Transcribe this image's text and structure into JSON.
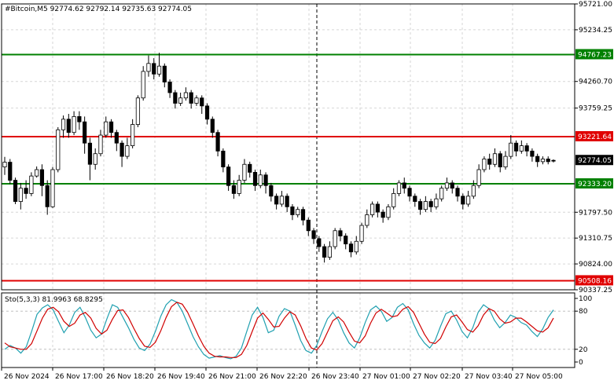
{
  "chart_data": {
    "type": "candlestick",
    "symbol_header": "#Bitcoin,M5  92774.62 92792.14 92735.63 92774.05",
    "y_axis": {
      "ylim": [
        90337.25,
        95721.0
      ],
      "ticks": [
        "95721.00",
        "95234.25",
        "94260.70",
        "93759.25",
        "91797.50",
        "91310.75",
        "90824.00",
        "90337.25"
      ]
    },
    "x_axis": {
      "tick_labels": [
        "26 Nov 2024",
        "26 Nov 17:00",
        "26 Nov 18:20",
        "26 Nov 19:40",
        "26 Nov 21:00",
        "26 Nov 22:20",
        "26 Nov 23:40",
        "27 Nov 01:00",
        "27 Nov 02:20",
        "27 Nov 03:40",
        "27 Nov 05:00"
      ]
    },
    "levels": [
      {
        "value": 94767.23,
        "label": "94767.23",
        "color": "#008000"
      },
      {
        "value": 93221.64,
        "label": "93221.64",
        "color": "#e00000"
      },
      {
        "value": 92333.2,
        "label": "92333.20",
        "color": "#008000"
      },
      {
        "value": 90508.16,
        "label": "90508.16",
        "color": "#e00000"
      }
    ],
    "current_price": {
      "value": 92774.05,
      "label": "92774.05"
    },
    "candles": [
      [
        92650,
        92740,
        92500,
        92840
      ],
      [
        92740,
        92400,
        92330,
        92800
      ],
      [
        92400,
        92000,
        91950,
        92450
      ],
      [
        92000,
        92250,
        91850,
        92350
      ],
      [
        92250,
        92150,
        92050,
        92400
      ],
      [
        92150,
        92480,
        92100,
        92550
      ],
      [
        92480,
        92600,
        92450,
        92660
      ],
      [
        92600,
        92300,
        92100,
        92700
      ],
      [
        92300,
        91900,
        91750,
        92400
      ],
      [
        91900,
        92600,
        91880,
        92650
      ],
      [
        92600,
        93350,
        92550,
        93400
      ],
      [
        93350,
        93550,
        93200,
        93620
      ],
      [
        93550,
        93300,
        93200,
        93650
      ],
      [
        93300,
        93600,
        93250,
        93700
      ],
      [
        93600,
        93500,
        93350,
        93700
      ],
      [
        93500,
        93100,
        92900,
        93600
      ],
      [
        93100,
        92700,
        92400,
        93200
      ],
      [
        92700,
        92900,
        92600,
        93000
      ],
      [
        92900,
        93250,
        92850,
        93350
      ],
      [
        93250,
        93500,
        93200,
        93600
      ],
      [
        93500,
        93300,
        93200,
        93550
      ],
      [
        93300,
        93100,
        92950,
        93350
      ],
      [
        93100,
        92850,
        92650,
        93150
      ],
      [
        92850,
        93050,
        92800,
        93200
      ],
      [
        93050,
        93450,
        93000,
        93550
      ],
      [
        93450,
        93950,
        93400,
        94000
      ],
      [
        93950,
        94450,
        93900,
        94550
      ],
      [
        94450,
        94600,
        94350,
        94750
      ],
      [
        94600,
        94400,
        94300,
        94700
      ],
      [
        94400,
        94550,
        94350,
        94800
      ],
      [
        94550,
        94250,
        94150,
        94600
      ],
      [
        94250,
        94050,
        93950,
        94300
      ],
      [
        94050,
        93850,
        93750,
        94100
      ],
      [
        93850,
        93950,
        93800,
        94050
      ],
      [
        93950,
        94050,
        93900,
        94150
      ],
      [
        94050,
        93850,
        93750,
        94100
      ],
      [
        93850,
        93950,
        93800,
        94000
      ],
      [
        93950,
        93800,
        93650,
        94000
      ],
      [
        93800,
        93550,
        93450,
        93850
      ],
      [
        93550,
        93300,
        93200,
        93600
      ],
      [
        93300,
        92950,
        92850,
        93350
      ],
      [
        92950,
        92650,
        92550,
        93000
      ],
      [
        92650,
        92300,
        92200,
        92700
      ],
      [
        92300,
        92150,
        92050,
        92400
      ],
      [
        92150,
        92400,
        92100,
        92500
      ],
      [
        92400,
        92700,
        92350,
        92800
      ],
      [
        92700,
        92550,
        92450,
        92750
      ],
      [
        92550,
        92300,
        92200,
        92600
      ],
      [
        92300,
        92500,
        92250,
        92600
      ],
      [
        92500,
        92300,
        92150,
        92550
      ],
      [
        92300,
        92100,
        92000,
        92350
      ],
      [
        92100,
        91950,
        91850,
        92150
      ],
      [
        91950,
        92100,
        91900,
        92200
      ],
      [
        92100,
        91900,
        91800,
        92150
      ],
      [
        91900,
        91750,
        91650,
        91950
      ],
      [
        91750,
        91850,
        91700,
        91900
      ],
      [
        91850,
        91650,
        91550,
        91900
      ],
      [
        91650,
        91450,
        91350,
        91700
      ],
      [
        91450,
        91300,
        91200,
        91500
      ],
      [
        91300,
        91150,
        91050,
        91350
      ],
      [
        91150,
        90950,
        90850,
        91200
      ],
      [
        90950,
        91150,
        90900,
        91250
      ],
      [
        91150,
        91450,
        91100,
        91500
      ],
      [
        91450,
        91350,
        91250,
        91500
      ],
      [
        91350,
        91200,
        91100,
        91400
      ],
      [
        91200,
        91050,
        90950,
        91250
      ],
      [
        91050,
        91250,
        91000,
        91350
      ],
      [
        91250,
        91550,
        91200,
        91600
      ],
      [
        91550,
        91750,
        91500,
        91850
      ],
      [
        91750,
        91950,
        91700,
        92000
      ],
      [
        91950,
        91800,
        91700,
        92000
      ],
      [
        91800,
        91700,
        91600,
        91850
      ],
      [
        91700,
        91900,
        91650,
        91950
      ],
      [
        91900,
        92150,
        91850,
        92250
      ],
      [
        92150,
        92350,
        92100,
        92400
      ],
      [
        92350,
        92250,
        92150,
        92450
      ],
      [
        92250,
        92100,
        92000,
        92300
      ],
      [
        92100,
        92000,
        91900,
        92150
      ],
      [
        92000,
        91850,
        91750,
        92050
      ],
      [
        91850,
        92000,
        91800,
        92100
      ],
      [
        92000,
        91900,
        91800,
        92050
      ],
      [
        91900,
        92050,
        91850,
        92150
      ],
      [
        92050,
        92250,
        92000,
        92300
      ],
      [
        92250,
        92350,
        92200,
        92450
      ],
      [
        92350,
        92250,
        92150,
        92400
      ],
      [
        92250,
        92100,
        92000,
        92300
      ],
      [
        92100,
        91950,
        91850,
        92150
      ],
      [
        91950,
        92100,
        91900,
        92200
      ],
      [
        92100,
        92300,
        92050,
        92400
      ],
      [
        92300,
        92600,
        92250,
        92700
      ],
      [
        92600,
        92800,
        92550,
        92850
      ],
      [
        92800,
        92700,
        92600,
        92900
      ],
      [
        92700,
        92900,
        92650,
        93000
      ],
      [
        92900,
        92650,
        92550,
        92950
      ],
      [
        92650,
        92850,
        92600,
        92950
      ],
      [
        92850,
        93100,
        92800,
        93250
      ],
      [
        93100,
        92950,
        92850,
        93150
      ],
      [
        92950,
        93050,
        92900,
        93150
      ],
      [
        93050,
        92950,
        92850,
        93100
      ],
      [
        92950,
        92850,
        92750,
        93000
      ],
      [
        92850,
        92750,
        92650,
        92900
      ],
      [
        92750,
        92800,
        92700,
        92850
      ],
      [
        92800,
        92750,
        92700,
        92850
      ],
      [
        92775,
        92774,
        92736,
        92792
      ]
    ],
    "stochastic": {
      "label": "Sto(5,3,3) 81.9963 68.8295",
      "ylim": [
        0,
        100
      ],
      "ticks": [
        "100",
        "80",
        "20",
        "0"
      ],
      "k": [
        20,
        26,
        22,
        14,
        24,
        48,
        75,
        85,
        90,
        82,
        64,
        46,
        58,
        78,
        86,
        70,
        50,
        38,
        44,
        68,
        90,
        86,
        70,
        54,
        36,
        22,
        18,
        28,
        48,
        72,
        90,
        98,
        94,
        80,
        60,
        40,
        24,
        12,
        6,
        8,
        10,
        7,
        5,
        9,
        22,
        48,
        74,
        86,
        70,
        46,
        50,
        72,
        84,
        80,
        58,
        34,
        18,
        14,
        26,
        48,
        68,
        78,
        66,
        46,
        30,
        22,
        38,
        62,
        82,
        88,
        80,
        64,
        70,
        86,
        92,
        82,
        60,
        42,
        30,
        22,
        34,
        56,
        76,
        80,
        66,
        48,
        38,
        54,
        78,
        90,
        84,
        66,
        54,
        62,
        74,
        70,
        62,
        58,
        48,
        40,
        52,
        70,
        82
      ],
      "d": [
        30,
        24,
        22,
        20,
        20,
        29,
        49,
        69,
        83,
        86,
        79,
        64,
        56,
        61,
        74,
        78,
        69,
        53,
        44,
        50,
        67,
        81,
        82,
        70,
        53,
        37,
        25,
        23,
        31,
        49,
        70,
        87,
        94,
        91,
        78,
        60,
        41,
        25,
        14,
        9,
        8,
        8,
        7,
        7,
        12,
        26,
        48,
        69,
        77,
        67,
        55,
        56,
        69,
        79,
        74,
        57,
        37,
        22,
        19,
        29,
        47,
        65,
        71,
        63,
        47,
        33,
        30,
        41,
        61,
        77,
        83,
        77,
        71,
        73,
        83,
        87,
        78,
        61,
        44,
        31,
        29,
        37,
        55,
        71,
        74,
        63,
        51,
        47,
        57,
        74,
        84,
        80,
        68,
        61,
        63,
        69,
        69,
        63,
        56,
        49,
        47,
        54,
        69
      ]
    }
  }
}
